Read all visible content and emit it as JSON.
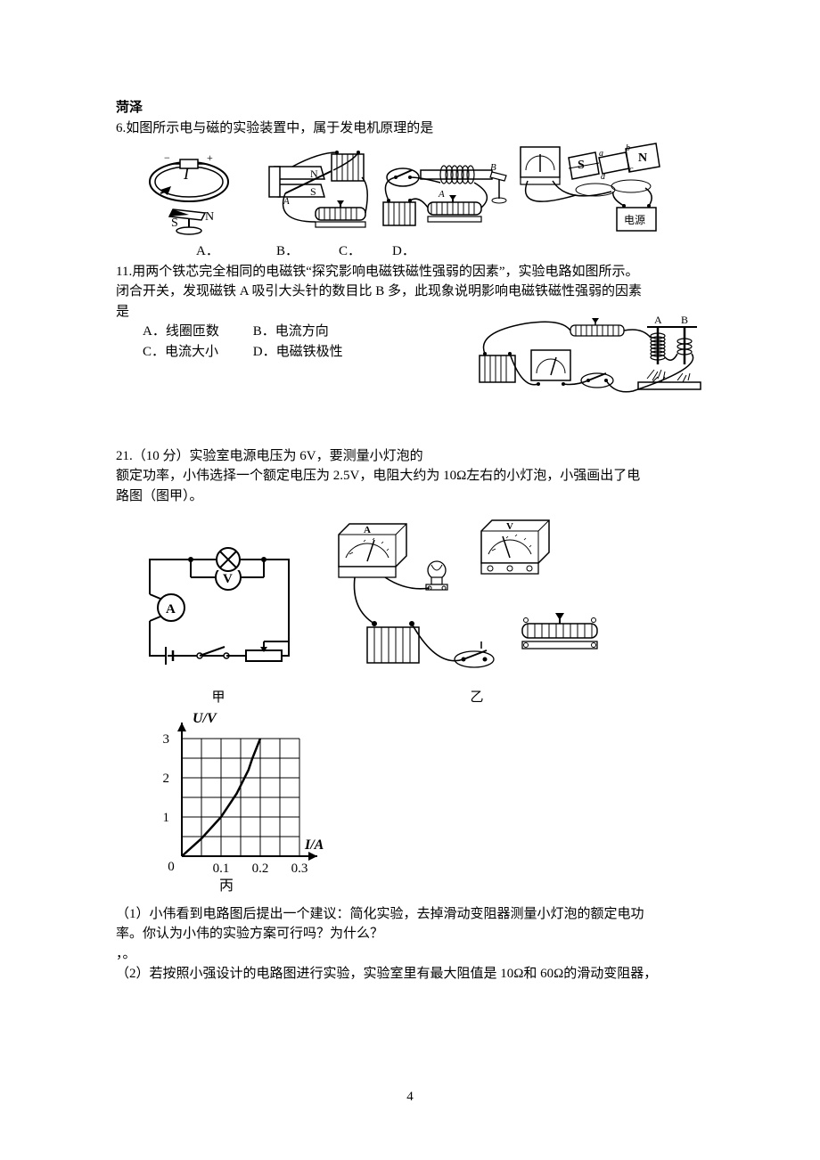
{
  "page": {
    "number": "4"
  },
  "colors": {
    "text": "#000000",
    "bg": "#ffffff",
    "stroke": "#000000",
    "chart_grid": "#000000"
  },
  "fonts": {
    "body_family": "SimSun / Songti",
    "body_size_pt": 11,
    "chart_label_family": "Times New Roman",
    "chart_label_size_pt": 12
  },
  "header": {
    "title": "菏泽"
  },
  "q6": {
    "number": "6.",
    "stem": "如图所示电与磁的实验装置中，属于发电机原理的是",
    "options": {
      "A": "A．",
      "B": "B．",
      "C": "C．",
      "D": "D．"
    },
    "fig_labels": [
      "A．",
      "B．",
      "C．",
      "D．"
    ],
    "figA": {
      "glyphs": {
        "current": "I",
        "south": "S",
        "north": "N",
        "plus": "+",
        "minus": "−"
      }
    },
    "figB": {
      "glyphs": {
        "Nlabel": "N",
        "Slabel": "S",
        "A": "A",
        "B": "B"
      }
    },
    "figC": {
      "glyphs": {
        "A": "A",
        "B": "B"
      }
    },
    "figD": {
      "glyphs": {
        "S": "S",
        "N": "N",
        "a": "a",
        "b": "b",
        "c": "c",
        "d": "d",
        "src": "电源"
      }
    }
  },
  "q11": {
    "number": "11.",
    "stem_line1": "用两个铁芯完全相同的电磁铁“探究影响电磁铁磁性强弱的因素”，实验电路如图所示。",
    "stem_line2": "闭合开关，发现磁铁 A 吸引大头针的数目比 B 多，此现象说明影响电磁铁磁性强弱的因素",
    "stem_line3": "是",
    "options": {
      "A": "A．线圈匝数",
      "B": "B．电流方向",
      "C": "C．电流大小",
      "D": "D．电磁铁极性"
    },
    "fig_labels": {
      "A": "A",
      "B": "B"
    }
  },
  "q21": {
    "number": "21.",
    "points": "（10 分）",
    "stem_part1": "实验室电源电压为 6V，要测量小灯泡的",
    "stem_part2": "额定功率，小伟选择一个额定电压为 2.5V，电阻大约为 10Ω左右的小灯泡，小强画出了电",
    "stem_part3": "路图（图甲）。",
    "fig_jia": {
      "label": "甲",
      "meters": {
        "V": "V",
        "A": "A"
      }
    },
    "fig_yi": {
      "label": "乙"
    },
    "chart": {
      "type": "line",
      "label": "丙",
      "xlabel": "I/A",
      "ylabel": "U/V",
      "xticks": [
        "0",
        "0.1",
        "0.2",
        "0.3"
      ],
      "yticks": [
        "1",
        "2",
        "3"
      ],
      "xlim": [
        0,
        0.3
      ],
      "ylim": [
        0,
        3
      ],
      "grid_step_x": 0.05,
      "grid_step_y": 0.5,
      "curve_points": [
        {
          "x": 0.0,
          "y": 0.0
        },
        {
          "x": 0.05,
          "y": 0.45
        },
        {
          "x": 0.1,
          "y": 1.0
        },
        {
          "x": 0.14,
          "y": 1.6
        },
        {
          "x": 0.17,
          "y": 2.2
        },
        {
          "x": 0.18,
          "y": 2.5
        },
        {
          "x": 0.2,
          "y": 3.0
        }
      ],
      "line_color": "#000000",
      "line_width": 2,
      "grid_color": "#000000",
      "grid_width": 1,
      "axis_color": "#000000",
      "axis_width": 2
    },
    "sub1_line1": "（1）小伟看到电路图后提出一个建议：简化实验，去掉滑动变阻器测量小灯泡的额定电功",
    "sub1_line2": "率。你认为小伟的实验方案可行吗？为什么？",
    "sub1_tail": "，。",
    "sub2": "（2）若按照小强设计的电路图进行实验，实验室里有最大阻值是 10Ω和 60Ω的滑动变阻器，"
  }
}
